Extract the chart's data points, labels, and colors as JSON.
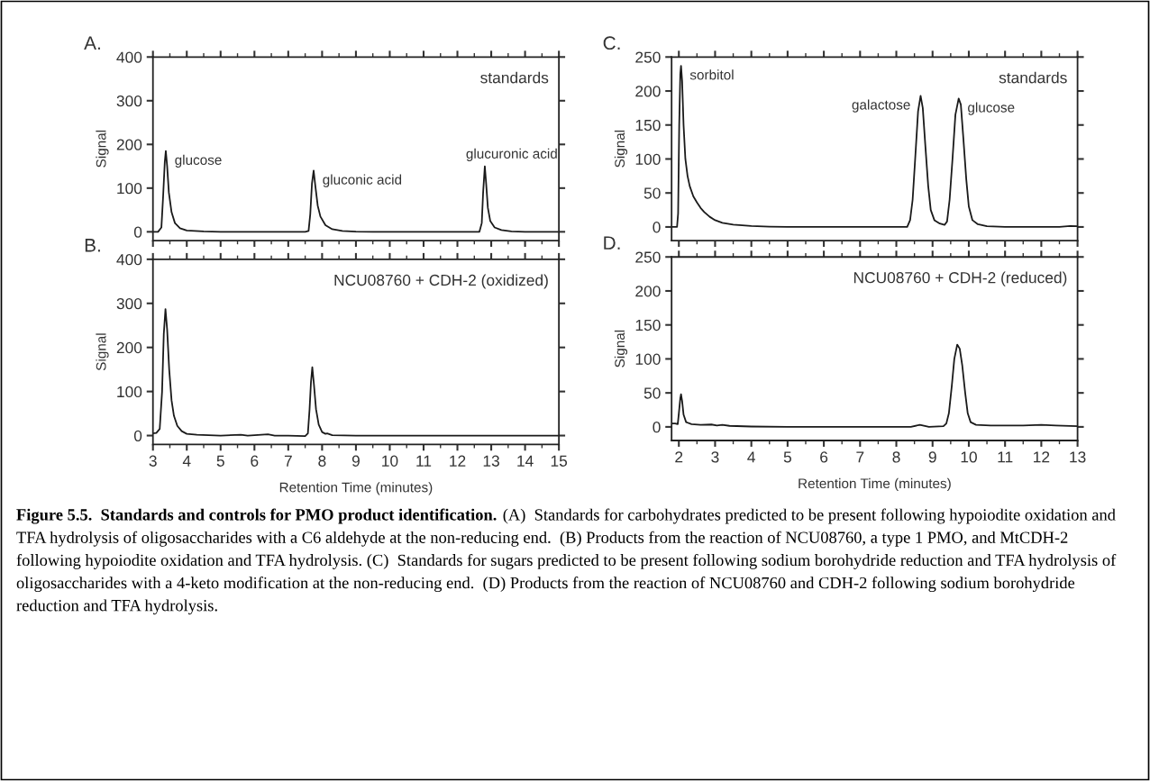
{
  "chart_data": [
    {
      "type": "line",
      "title": "A.",
      "ylabel": "Signal",
      "color": "#1a1a1a",
      "xlim": [
        3,
        15
      ],
      "xticks": [
        3,
        4,
        5,
        6,
        7,
        8,
        9,
        10,
        11,
        12,
        13,
        14,
        15
      ],
      "ylim": [
        -20,
        400
      ],
      "yticks": [
        0,
        100,
        200,
        300,
        400
      ],
      "tick_labels": "y",
      "x": [
        3.0,
        3.15,
        3.25,
        3.3,
        3.35,
        3.38,
        3.42,
        3.47,
        3.55,
        3.65,
        3.8,
        4.0,
        4.5,
        5,
        7.5,
        7.6,
        7.65,
        7.7,
        7.75,
        7.8,
        7.87,
        7.95,
        8.1,
        8.3,
        8.6,
        9,
        9.5,
        12.65,
        12.72,
        12.76,
        12.81,
        12.85,
        12.9,
        12.97,
        13.1,
        13.3,
        13.6,
        14,
        15
      ],
      "values": [
        0,
        0,
        10,
        80,
        160,
        185,
        150,
        90,
        45,
        20,
        8,
        3,
        1,
        0,
        0,
        2,
        40,
        110,
        140,
        105,
        60,
        35,
        15,
        6,
        2,
        0.5,
        0,
        0,
        20,
        90,
        150,
        110,
        55,
        25,
        10,
        4,
        1,
        0,
        0
      ],
      "annotations": [
        "standards",
        {
          "text": "glucose",
          "x": 3.38,
          "y": 185
        },
        {
          "text": "gluconic acid",
          "x": 7.75,
          "y": 140
        },
        {
          "text": "glucuronic acid",
          "x": 12.81,
          "y": 150
        }
      ]
    },
    {
      "type": "line",
      "title": "B.",
      "xlabel": "Retention Time (minutes)",
      "ylabel": "Signal",
      "color": "#1a1a1a",
      "xlim": [
        3,
        15
      ],
      "xticks": [
        3,
        4,
        5,
        6,
        7,
        8,
        9,
        10,
        11,
        12,
        13,
        14,
        15
      ],
      "ylim": [
        -20,
        400
      ],
      "yticks": [
        0,
        100,
        200,
        300,
        400
      ],
      "x": [
        3.0,
        3.1,
        3.2,
        3.27,
        3.32,
        3.37,
        3.42,
        3.48,
        3.55,
        3.62,
        3.72,
        3.85,
        4.0,
        4.3,
        5,
        5.6,
        5.8,
        6.4,
        6.6,
        7.0,
        7.5,
        7.58,
        7.63,
        7.67,
        7.71,
        7.76,
        7.82,
        7.9,
        8.0,
        8.1,
        8.15,
        8.3,
        9,
        15
      ],
      "values": [
        5,
        6,
        15,
        100,
        230,
        287,
        240,
        150,
        80,
        45,
        22,
        10,
        4,
        2,
        0,
        2,
        0,
        3,
        0,
        0,
        -1,
        5,
        60,
        120,
        155,
        115,
        60,
        25,
        8,
        4,
        5,
        1,
        0,
        0
      ],
      "annotations": [
        "NCU08760 + CDH-2 (oxidized)"
      ]
    },
    {
      "type": "line",
      "title": "C.",
      "ylabel": "Signal",
      "color": "#1a1a1a",
      "xlim": [
        1.8,
        13
      ],
      "xticks": [
        2,
        3,
        4,
        5,
        6,
        7,
        8,
        9,
        10,
        11,
        12,
        13
      ],
      "ylim": [
        -20,
        250
      ],
      "yticks": [
        0,
        50,
        100,
        150,
        200,
        250
      ],
      "tick_labels": "y",
      "x": [
        1.8,
        1.95,
        1.98,
        2.01,
        2.04,
        2.06,
        2.09,
        2.13,
        2.18,
        2.24,
        2.3,
        2.4,
        2.5,
        2.6,
        2.7,
        2.85,
        3.0,
        3.2,
        3.5,
        4.0,
        4.5,
        5,
        8.3,
        8.38,
        8.45,
        8.52,
        8.6,
        8.67,
        8.73,
        8.8,
        8.88,
        8.95,
        9.05,
        9.2,
        9.33,
        9.4,
        9.47,
        9.55,
        9.63,
        9.72,
        9.78,
        9.85,
        9.93,
        10.0,
        10.1,
        10.25,
        10.5,
        11,
        12.5,
        12.8,
        13
      ],
      "values": [
        0,
        0,
        20,
        150,
        225,
        237,
        215,
        150,
        100,
        75,
        60,
        45,
        36,
        28,
        22,
        15,
        10,
        6,
        3.5,
        1.5,
        0.5,
        0,
        0,
        10,
        40,
        100,
        170,
        193,
        175,
        120,
        60,
        25,
        10,
        5,
        3,
        8,
        40,
        100,
        165,
        189,
        180,
        130,
        70,
        30,
        10,
        4,
        1,
        0,
        0,
        1.5,
        1
      ],
      "annotations": [
        "standards",
        {
          "text": "sorbitol",
          "x": 2.06,
          "y": 237
        },
        {
          "text": "galactose",
          "x": 8.67,
          "y": 193
        },
        {
          "text": "glucose",
          "x": 9.72,
          "y": 189
        }
      ]
    },
    {
      "type": "line",
      "title": "D.",
      "xlabel": "Retention Time (minutes)",
      "ylabel": "Signal",
      "color": "#1a1a1a",
      "xlim": [
        1.8,
        13
      ],
      "xticks": [
        2,
        3,
        4,
        5,
        6,
        7,
        8,
        9,
        10,
        11,
        12,
        13
      ],
      "ylim": [
        -20,
        250
      ],
      "yticks": [
        0,
        50,
        100,
        150,
        200,
        250
      ],
      "x": [
        1.8,
        1.9,
        1.97,
        2.0,
        2.04,
        2.06,
        2.09,
        2.13,
        2.2,
        2.35,
        2.6,
        2.9,
        3.05,
        3.2,
        3.4,
        4,
        5,
        8.4,
        8.65,
        8.9,
        9.3,
        9.38,
        9.45,
        9.53,
        9.6,
        9.68,
        9.75,
        9.82,
        9.9,
        9.97,
        10.05,
        10.2,
        10.6,
        11.5,
        12,
        12.4,
        13
      ],
      "values": [
        5,
        5,
        4,
        20,
        42,
        48,
        38,
        18,
        7,
        4,
        3,
        3.5,
        2,
        3,
        1.5,
        0.5,
        0,
        0,
        3,
        0,
        1,
        5,
        20,
        60,
        100,
        121,
        115,
        90,
        50,
        20,
        7,
        3,
        2,
        2,
        3,
        2,
        1
      ],
      "annotations": [
        "NCU08760 + CDH-2 (reduced)"
      ]
    },
    {
      "type": "other",
      "annotations": [
        "Figure 5.5.  Standards and controls for PMO product identification.",
        "(A)  Standards for carbohydrates predicted to be present following hypoiodite oxidation and TFA hydrolysis of oligosaccharides with a C6 aldehyde at the non-reducing end.  (B) Products from the reaction of NCU08760, a type 1 PMO, and MtCDH-2 following hypoiodite oxidation and TFA hydrolysis. (C)  Standards for sugars predicted to be present following sodium borohydride reduction and TFA hydrolysis of oligosaccharides with a 4-keto modification at the non-reducing end.  (D) Products from the reaction of NCU08760 and CDH-2 following sodium borohydride reduction and TFA hydrolysis."
      ]
    }
  ]
}
